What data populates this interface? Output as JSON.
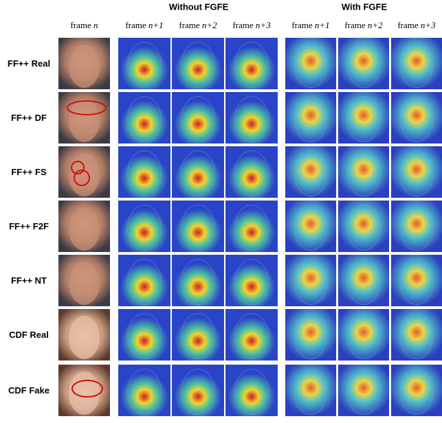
{
  "groups": [
    "Without FGFE",
    "With FGFE"
  ],
  "columns": [
    {
      "word": "frame",
      "index": "n"
    },
    {
      "word": "frame",
      "index": "n+1"
    },
    {
      "word": "frame",
      "index": "n+2"
    },
    {
      "word": "frame",
      "index": "n+3"
    },
    {
      "word": "frame",
      "index": "n+1"
    },
    {
      "word": "frame",
      "index": "n+2"
    },
    {
      "word": "frame",
      "index": "n+3"
    }
  ],
  "rows": [
    "FF++ Real",
    "FF++ DF",
    "FF++ FS",
    "FF++ F2F",
    "FF++ NT",
    "CDF Real",
    "CDF Fake"
  ]
}
